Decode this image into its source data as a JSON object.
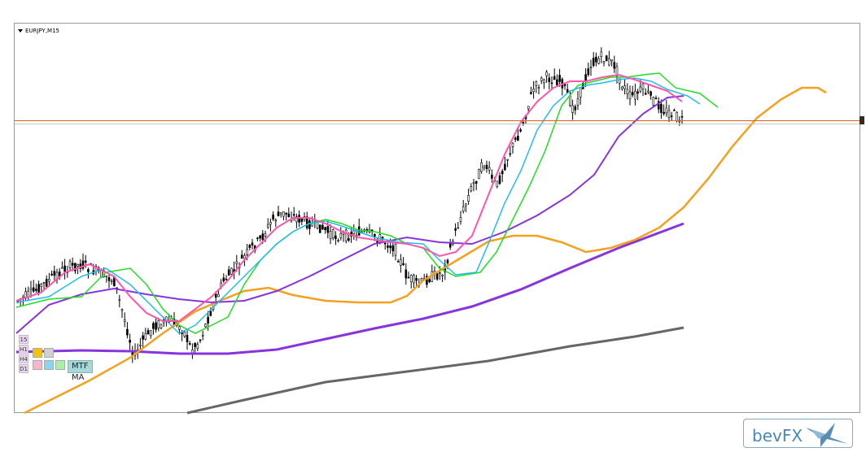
{
  "chart": {
    "symbol": "EURJPY,M15"
  },
  "mtf_panel": {
    "timeframes": [
      "15",
      "H1",
      "H4",
      "D1"
    ],
    "label": "MTF MA",
    "box_colors": [
      "#f5c400",
      "#d0d0d0",
      "#f7b7c8",
      "#8ad6ee",
      "#a8f0a8"
    ]
  },
  "logo": {
    "text": "bevFX"
  },
  "colors": {
    "price_line": "#e0601a",
    "green_ma": "#22dd22",
    "cyan_ma": "#22bbee",
    "pink_ma": "#ff55aa",
    "purple_ma": "#8833dd",
    "orange_ma": "#f5a020",
    "gray_ma": "#666666",
    "candles": "#000000"
  }
}
